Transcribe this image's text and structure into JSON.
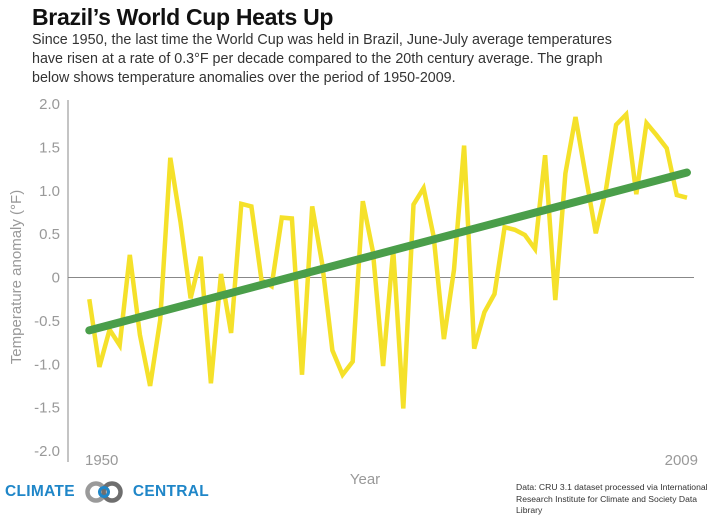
{
  "header": {
    "title": "Brazil’s World Cup Heats Up",
    "subtitle": "Since 1950, the last time the World Cup was held in Brazil, June-July average temperatures have risen at a rate of  0.3°F per decade compared to the 20th century average. The graph below shows temperature anomalies over the period of 1950-2009."
  },
  "chart_data": {
    "type": "line",
    "title": "Brazil’s World Cup Heats Up",
    "xlabel": "Year",
    "ylabel": "Temperature anomaly (°F)",
    "xlim": [
      1950,
      2009
    ],
    "ylim": [
      -2.0,
      2.0
    ],
    "x_tick_labels": [
      "1950",
      "2009"
    ],
    "y_tick_labels": [
      "2.0",
      "1.5",
      "1.0",
      "0.5",
      "0",
      "-0.5",
      "-1.0",
      "-1.5",
      "-2.0"
    ],
    "y_ticks": [
      2.0,
      1.5,
      1.0,
      0.5,
      0,
      -0.5,
      -1.0,
      -1.5,
      -2.0
    ],
    "grid": false,
    "zero_line": true,
    "x_start": 1950,
    "series": [
      {
        "color": "#f5e12a",
        "values": [
          -0.25,
          -1.03,
          -0.6,
          -0.78,
          0.26,
          -0.66,
          -1.25,
          -0.49,
          1.38,
          0.64,
          -0.24,
          0.24,
          -1.22,
          0.04,
          -0.64,
          0.85,
          0.82,
          -0.03,
          -0.1,
          0.69,
          0.68,
          -1.12,
          0.82,
          0.15,
          -0.84,
          -1.12,
          -0.97,
          0.88,
          0.3,
          -1.02,
          0.32,
          -1.51,
          0.84,
          1.03,
          0.47,
          -0.71,
          0.09,
          1.52,
          -0.82,
          -0.4,
          -0.19,
          0.58,
          0.55,
          0.49,
          0.33,
          1.41,
          -0.26,
          1.2,
          1.85,
          1.17,
          0.51,
          1.01,
          1.76,
          1.88,
          0.96,
          1.78,
          1.64,
          1.49,
          0.95,
          0.92
        ]
      }
    ],
    "trend": {
      "color": "#4a9e4a",
      "from": [
        1950,
        -0.61
      ],
      "to": [
        2009,
        1.21
      ]
    }
  },
  "footer": {
    "logo_left": "CLIMATE",
    "logo_right": "CENTRAL",
    "source_line1": "Data: CRU 3.1 dataset processed via International",
    "source_line2": "Research Institute for Climate and Society Data Library"
  }
}
